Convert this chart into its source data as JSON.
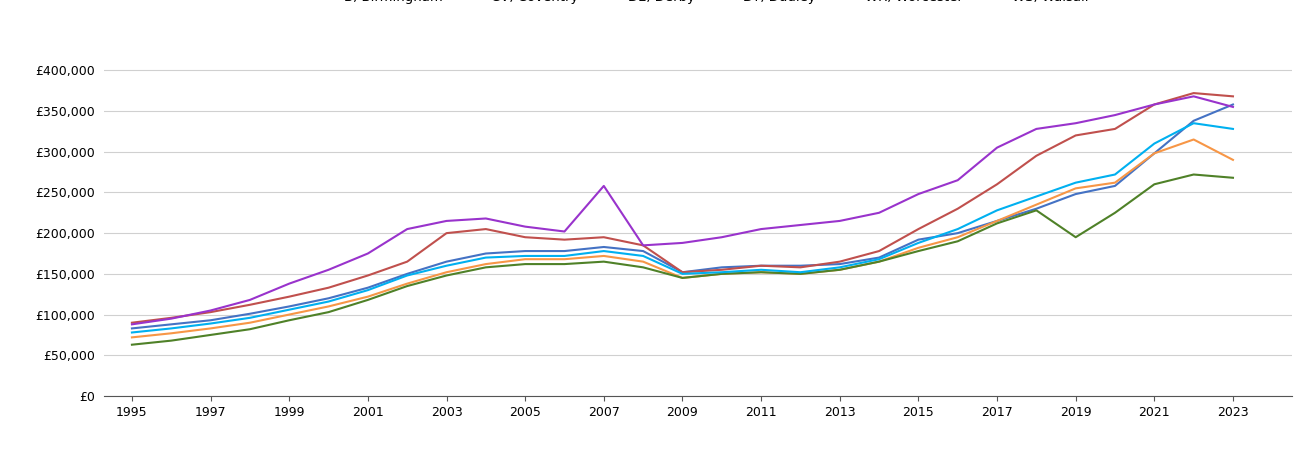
{
  "title": "",
  "years": [
    1995,
    1996,
    1997,
    1998,
    1999,
    2000,
    2001,
    2002,
    2003,
    2004,
    2005,
    2006,
    2007,
    2008,
    2009,
    2010,
    2011,
    2012,
    2013,
    2014,
    2015,
    2016,
    2017,
    2018,
    2019,
    2020,
    2021,
    2022,
    2023
  ],
  "series": {
    "B, Birmingham": {
      "color": "#4472C4",
      "values": [
        83000,
        88000,
        93000,
        101000,
        110000,
        120000,
        133000,
        150000,
        165000,
        175000,
        178000,
        178000,
        183000,
        178000,
        152000,
        158000,
        160000,
        160000,
        162000,
        170000,
        192000,
        200000,
        215000,
        230000,
        248000,
        258000,
        298000,
        338000,
        358000
      ]
    },
    "CV, Coventry": {
      "color": "#C0504D",
      "values": [
        90000,
        96000,
        103000,
        112000,
        122000,
        133000,
        148000,
        165000,
        200000,
        205000,
        195000,
        192000,
        195000,
        185000,
        152000,
        155000,
        160000,
        158000,
        165000,
        178000,
        205000,
        230000,
        260000,
        295000,
        320000,
        328000,
        358000,
        372000,
        368000
      ]
    },
    "DE, Derby": {
      "color": "#F79646",
      "values": [
        72000,
        77000,
        83000,
        90000,
        100000,
        110000,
        122000,
        138000,
        152000,
        162000,
        168000,
        168000,
        172000,
        165000,
        145000,
        150000,
        152000,
        150000,
        155000,
        165000,
        182000,
        195000,
        215000,
        235000,
        255000,
        262000,
        298000,
        315000,
        290000
      ]
    },
    "DY, Dudley": {
      "color": "#4F8128",
      "values": [
        63000,
        68000,
        75000,
        82000,
        93000,
        103000,
        118000,
        135000,
        148000,
        158000,
        162000,
        162000,
        165000,
        158000,
        145000,
        150000,
        152000,
        150000,
        155000,
        165000,
        178000,
        190000,
        212000,
        228000,
        195000,
        225000,
        260000,
        272000,
        268000
      ]
    },
    "WR, Worcester": {
      "color": "#9933CC",
      "values": [
        88000,
        95000,
        105000,
        118000,
        138000,
        155000,
        175000,
        205000,
        215000,
        218000,
        208000,
        202000,
        258000,
        185000,
        188000,
        195000,
        205000,
        210000,
        215000,
        225000,
        248000,
        265000,
        305000,
        328000,
        335000,
        345000,
        358000,
        368000,
        355000
      ]
    },
    "WS, Walsall": {
      "color": "#00B0F0",
      "values": [
        78000,
        83000,
        89000,
        96000,
        106000,
        116000,
        130000,
        148000,
        160000,
        170000,
        172000,
        172000,
        178000,
        172000,
        150000,
        152000,
        155000,
        152000,
        158000,
        168000,
        188000,
        205000,
        228000,
        245000,
        262000,
        272000,
        310000,
        335000,
        328000
      ]
    }
  },
  "ylim": [
    0,
    420000
  ],
  "yticks": [
    0,
    50000,
    100000,
    150000,
    200000,
    250000,
    300000,
    350000,
    400000
  ],
  "xticks": [
    1995,
    1997,
    1999,
    2001,
    2003,
    2005,
    2007,
    2009,
    2011,
    2013,
    2015,
    2017,
    2019,
    2021,
    2023
  ],
  "background_color": "#ffffff",
  "grid_color": "#d0d0d0",
  "linewidth": 1.5
}
